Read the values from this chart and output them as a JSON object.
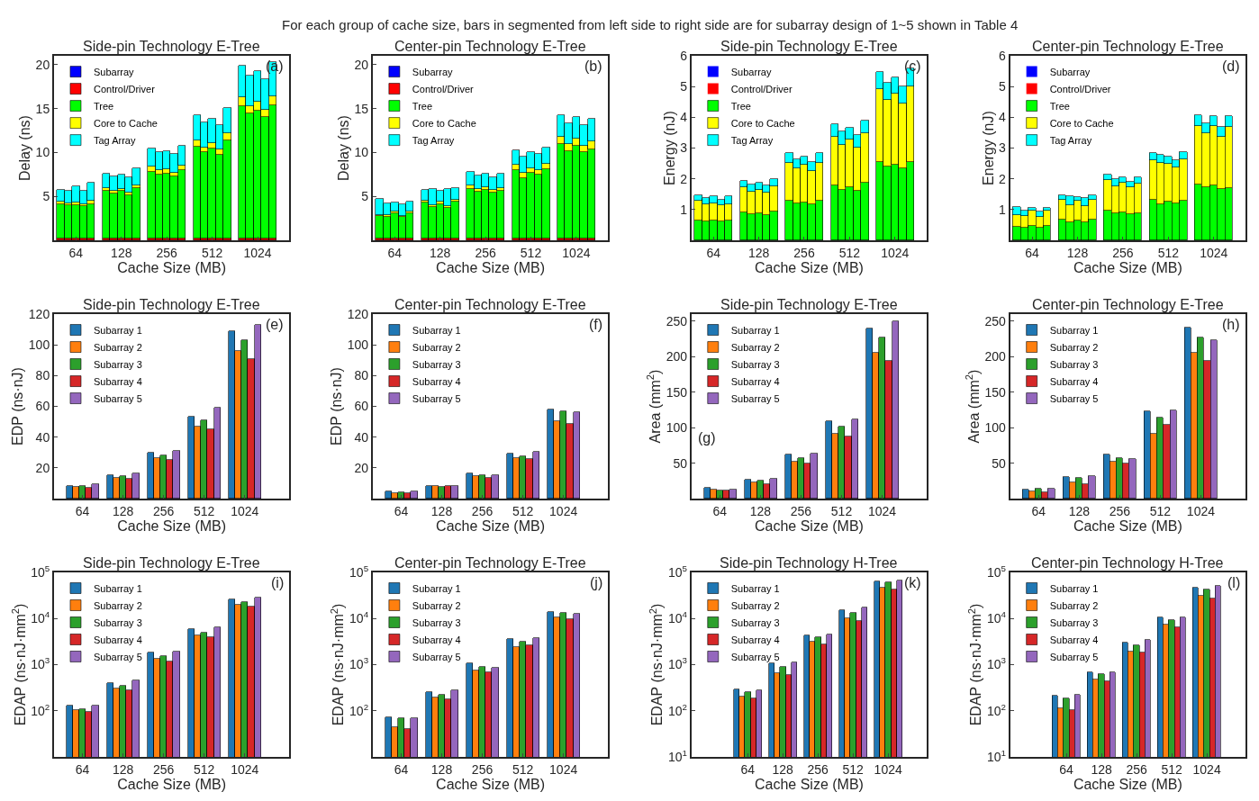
{
  "chart_data": [
    {
      "type": "bar",
      "title": "Side-pin Technology E-Tree",
      "xlabel": "Cache Size (MB)",
      "ylabel": "Delay (ns)",
      "stacked": true,
      "legend": "top left",
      "ylim": [
        0,
        21
      ],
      "yticks": [
        5,
        10,
        15,
        20
      ],
      "annotations": [
        "For each group of cache size, bars in segmented from left side to right side are for subarray design of 1~5 shown in Table 4",
        "(a)"
      ],
      "categories": [
        null,
        null,
        "64",
        null,
        null,
        null,
        null,
        null,
        "128",
        null,
        null,
        null,
        null,
        null,
        "256",
        null,
        null,
        null,
        null,
        null,
        "512",
        null,
        null,
        null,
        null,
        null,
        "1024",
        null,
        null
      ],
      "series": [
        {
          "name": "Subarray",
          "color": "#0000ff",
          "values": [
            0.05,
            0.05,
            0.05,
            0.05,
            0.05,
            null,
            0.05,
            0.05,
            0.05,
            0.05,
            0.05,
            null,
            0.05,
            0.05,
            0.05,
            0.05,
            0.05,
            null,
            0.05,
            0.05,
            0.05,
            0.05,
            0.05,
            null,
            0.05,
            0.05,
            0.05,
            0.05,
            0.05
          ]
        },
        {
          "name": "Control/Driver",
          "color": "#ff0000",
          "values": [
            0.2,
            0.2,
            0.2,
            0.2,
            0.2,
            null,
            0.2,
            0.2,
            0.2,
            0.2,
            0.2,
            null,
            0.2,
            0.2,
            0.2,
            0.2,
            0.2,
            null,
            0.2,
            0.2,
            0.2,
            0.2,
            0.2,
            null,
            0.2,
            0.2,
            0.2,
            0.2,
            0.2
          ]
        },
        {
          "name": "Tree",
          "color": "#00ff00",
          "values": [
            3.85,
            3.75,
            3.8,
            3.7,
            3.9,
            null,
            5.4,
            5.05,
            5.35,
            4.9,
            5.75,
            null,
            7.55,
            7.25,
            7.35,
            7.05,
            7.7,
            null,
            10.45,
            9.75,
            10.25,
            9.45,
            11.15,
            null,
            15.05,
            14.15,
            14.55,
            13.75,
            15.15
          ]
        },
        {
          "name": "Core to Cache",
          "color": "#ffff00",
          "values": [
            0.3,
            0.25,
            0.25,
            0.2,
            0.35,
            null,
            0.3,
            0.3,
            0.25,
            0.3,
            0.3,
            null,
            0.6,
            0.5,
            0.55,
            0.4,
            0.55,
            null,
            0.7,
            0.6,
            0.6,
            0.7,
            0.8,
            null,
            1.0,
            0.9,
            1.0,
            0.9,
            1.0
          ]
        },
        {
          "name": "Tag Array",
          "color": "#00ffff",
          "values": [
            1.35,
            1.4,
            1.9,
            1.45,
            2.05,
            null,
            1.65,
            1.7,
            1.65,
            1.75,
            1.9,
            null,
            2.1,
            2.0,
            2.05,
            2.1,
            2.3,
            null,
            2.8,
            2.8,
            2.7,
            2.7,
            2.9,
            null,
            3.6,
            3.4,
            3.5,
            3.4,
            3.9
          ]
        }
      ]
    },
    {
      "type": "bar",
      "title": "Center-pin Technology E-Tree",
      "xlabel": "Cache Size (MB)",
      "ylabel": "Delay (ns)",
      "stacked": true,
      "legend": "top left",
      "ylim": [
        0,
        21
      ],
      "yticks": [
        5,
        10,
        15,
        20
      ],
      "annotations": [
        "(b)"
      ],
      "categories": [
        null,
        null,
        "64",
        null,
        null,
        null,
        null,
        null,
        "128",
        null,
        null,
        null,
        null,
        null,
        "256",
        null,
        null,
        null,
        null,
        null,
        "512",
        null,
        null,
        null,
        null,
        null,
        "1024",
        null,
        null
      ],
      "series": [
        {
          "name": "Subarray",
          "color": "#0000ff",
          "values": [
            0.05,
            0.05,
            0.05,
            0.05,
            0.05,
            null,
            0.05,
            0.05,
            0.05,
            0.05,
            0.05,
            null,
            0.05,
            0.05,
            0.05,
            0.05,
            0.05,
            null,
            0.05,
            0.05,
            0.05,
            0.05,
            0.05,
            null,
            0.05,
            0.05,
            0.05,
            0.05,
            0.05
          ]
        },
        {
          "name": "Control/Driver",
          "color": "#ff0000",
          "values": [
            0.2,
            0.2,
            0.2,
            0.2,
            0.2,
            null,
            0.2,
            0.2,
            0.2,
            0.2,
            0.2,
            null,
            0.2,
            0.2,
            0.2,
            0.2,
            0.2,
            null,
            0.2,
            0.2,
            0.2,
            0.2,
            0.2,
            null,
            0.2,
            0.2,
            0.2,
            0.2,
            0.2
          ]
        },
        {
          "name": "Tree",
          "color": "#00ff00",
          "values": [
            2.5,
            2.45,
            2.85,
            2.4,
            2.8,
            null,
            4.05,
            3.55,
            3.9,
            3.5,
            4.15,
            null,
            5.65,
            5.25,
            5.45,
            5.15,
            5.35,
            null,
            7.75,
            6.85,
            7.45,
            7.25,
            7.85,
            null,
            10.75,
            9.95,
            10.55,
            9.75,
            10.15
          ]
        },
        {
          "name": "Core to Cache",
          "color": "#ffff00",
          "values": [
            0.15,
            0.15,
            0.15,
            0.15,
            0.2,
            null,
            0.25,
            0.25,
            0.3,
            0.2,
            0.25,
            null,
            0.4,
            0.35,
            0.35,
            0.35,
            0.35,
            null,
            0.6,
            0.6,
            0.55,
            0.5,
            0.6,
            null,
            0.8,
            0.8,
            0.8,
            0.8,
            0.9
          ]
        },
        {
          "name": "Tag Array",
          "color": "#00ffff",
          "values": [
            1.8,
            1.35,
            1.05,
            1.3,
            1.2,
            null,
            1.15,
            1.85,
            1.15,
            1.9,
            1.35,
            null,
            1.45,
            1.5,
            1.5,
            1.45,
            1.65,
            null,
            1.7,
            1.8,
            1.8,
            1.8,
            1.9,
            null,
            2.4,
            2.3,
            2.4,
            2.3,
            2.5
          ]
        }
      ]
    },
    {
      "type": "bar",
      "title": "Side-pin Technology E-Tree",
      "xlabel": "Cache Size (MB)",
      "ylabel": "Energy (nJ)",
      "stacked": true,
      "legend": "top left",
      "ylim": [
        0,
        6
      ],
      "yticks": [
        1,
        2,
        3,
        4,
        5,
        6
      ],
      "annotations": [
        "(c)"
      ],
      "categories": [
        null,
        null,
        "64",
        null,
        null,
        null,
        null,
        null,
        "128",
        null,
        null,
        null,
        null,
        null,
        "256",
        null,
        null,
        null,
        null,
        null,
        "512",
        null,
        null,
        null,
        null,
        null,
        "1024",
        null,
        null
      ],
      "series": [
        {
          "name": "Subarray",
          "color": "#0000ff",
          "values": [
            0,
            0,
            0,
            0,
            0,
            null,
            0,
            0,
            0,
            0,
            0,
            null,
            0,
            0,
            0,
            0,
            0,
            null,
            0,
            0,
            0,
            0,
            0,
            null,
            0,
            0,
            0,
            0,
            0
          ]
        },
        {
          "name": "Control/Driver",
          "color": "#ff0000",
          "values": [
            0,
            0,
            0,
            0,
            0,
            null,
            0,
            0,
            0,
            0,
            0,
            null,
            0,
            0,
            0,
            0,
            0,
            null,
            0,
            0,
            0,
            0,
            0,
            null,
            0,
            0,
            0,
            0,
            0
          ]
        },
        {
          "name": "Tree",
          "color": "#00ff00",
          "values": [
            0.66,
            0.63,
            0.64,
            0.61,
            0.66,
            null,
            0.91,
            0.85,
            0.88,
            0.83,
            0.95,
            null,
            1.28,
            1.21,
            1.23,
            1.18,
            1.28,
            null,
            1.78,
            1.65,
            1.73,
            1.6,
            1.88,
            null,
            2.55,
            2.4,
            2.45,
            2.33,
            2.54
          ]
        },
        {
          "name": "Core to Cache",
          "color": "#ffff00",
          "values": [
            0.62,
            0.53,
            0.56,
            0.54,
            0.52,
            null,
            0.82,
            0.73,
            0.77,
            0.72,
            0.81,
            null,
            1.23,
            1.12,
            1.23,
            1.08,
            1.25,
            null,
            1.58,
            1.45,
            1.55,
            1.43,
            1.6,
            null,
            2.38,
            2.18,
            2.33,
            2.13,
            2.46
          ]
        },
        {
          "name": "Tag Array",
          "color": "#00ffff",
          "values": [
            0.18,
            0.22,
            0.23,
            0.18,
            0.27,
            null,
            0.21,
            0.25,
            0.23,
            0.23,
            0.24,
            null,
            0.32,
            0.3,
            0.25,
            0.3,
            0.32,
            null,
            0.42,
            0.43,
            0.38,
            0.4,
            0.42,
            null,
            0.55,
            0.55,
            0.53,
            0.54,
            0.58
          ]
        }
      ]
    },
    {
      "type": "bar",
      "title": "Center-pin Technology E-Tree",
      "xlabel": "Cache Size (MB)",
      "ylabel": "Energy (nJ)",
      "stacked": true,
      "legend": "top left",
      "ylim": [
        0,
        6
      ],
      "yticks": [
        1,
        2,
        3,
        4,
        5,
        6
      ],
      "annotations": [
        "(d)"
      ],
      "categories": [
        null,
        null,
        "64",
        null,
        null,
        null,
        null,
        null,
        "128",
        null,
        null,
        null,
        null,
        null,
        "256",
        null,
        null,
        null,
        null,
        null,
        "512",
        null,
        null,
        null,
        null,
        null,
        "1024",
        null,
        null
      ],
      "series": [
        {
          "name": "Subarray",
          "color": "#0000ff",
          "values": [
            0,
            0,
            0,
            0,
            0,
            null,
            0,
            0,
            0,
            0,
            0,
            null,
            0,
            0,
            0,
            0,
            0,
            null,
            0,
            0,
            0,
            0,
            0,
            null,
            0,
            0,
            0,
            0,
            0
          ]
        },
        {
          "name": "Control/Driver",
          "color": "#ff0000",
          "values": [
            0,
            0,
            0,
            0,
            0,
            null,
            0,
            0,
            0,
            0,
            0,
            null,
            0,
            0,
            0,
            0,
            0,
            null,
            0,
            0,
            0,
            0,
            0,
            null,
            0,
            0,
            0,
            0,
            0
          ]
        },
        {
          "name": "Tree",
          "color": "#00ff00",
          "values": [
            0.43,
            0.41,
            0.48,
            0.4,
            0.46,
            null,
            0.68,
            0.6,
            0.66,
            0.58,
            0.68,
            null,
            0.96,
            0.88,
            0.91,
            0.86,
            0.88,
            null,
            1.31,
            1.16,
            1.26,
            1.21,
            1.3,
            null,
            1.83,
            1.73,
            1.78,
            1.66,
            1.71
          ]
        },
        {
          "name": "Core to Cache",
          "color": "#ffff00",
          "values": [
            0.4,
            0.37,
            0.48,
            0.36,
            0.5,
            null,
            0.65,
            0.55,
            0.64,
            0.55,
            0.65,
            null,
            0.99,
            0.88,
            0.97,
            0.87,
            0.98,
            null,
            1.29,
            1.37,
            1.22,
            1.17,
            1.33,
            null,
            1.9,
            1.75,
            1.95,
            1.72,
            1.97
          ]
        },
        {
          "name": "Tag Array",
          "color": "#00ffff",
          "values": [
            0.25,
            0.2,
            0.1,
            0.17,
            0.1,
            null,
            0.14,
            0.29,
            0.1,
            0.24,
            0.15,
            null,
            0.18,
            0.22,
            0.17,
            0.17,
            0.19,
            null,
            0.24,
            0.25,
            0.25,
            0.23,
            0.23,
            null,
            0.35,
            0.32,
            0.32,
            0.32,
            0.35
          ]
        }
      ]
    },
    {
      "type": "bar",
      "title": "Side-pin Technology E-Tree",
      "xlabel": "Cache Size (MB)",
      "ylabel": "EDP (ns·nJ)",
      "legend": "top left",
      "ylim": [
        0,
        120
      ],
      "yticks": [
        20,
        40,
        60,
        80,
        100,
        120
      ],
      "annotations": [
        "(e)"
      ],
      "categories": [
        "64",
        "128",
        "256",
        "512",
        "1024"
      ],
      "series": [
        {
          "name": "Subarray 1",
          "color": "#1f77b4",
          "values": [
            8.5,
            15,
            30,
            53.5,
            109
          ]
        },
        {
          "name": "Subarray 2",
          "color": "#ff7f0e",
          "values": [
            7.5,
            13.5,
            26.5,
            47,
            96
          ]
        },
        {
          "name": "Subarray 3",
          "color": "#2ca02c",
          "values": [
            8.5,
            14.5,
            28,
            51,
            103
          ]
        },
        {
          "name": "Subarray 4",
          "color": "#d62728",
          "values": [
            7,
            13,
            25.5,
            45,
            91
          ]
        },
        {
          "name": "Subarray 5",
          "color": "#9467bd",
          "values": [
            9.5,
            16.5,
            31,
            59,
            113
          ]
        }
      ]
    },
    {
      "type": "bar",
      "title": "Center-pin Technology E-Tree",
      "xlabel": "Cache Size (MB)",
      "ylabel": "EDP (ns·nJ)",
      "legend": "top left",
      "ylim": [
        0,
        120
      ],
      "yticks": [
        20,
        40,
        60,
        80,
        100,
        120
      ],
      "annotations": [
        "(f)"
      ],
      "categories": [
        "64",
        "128",
        "256",
        "512",
        "1024"
      ],
      "series": [
        {
          "name": "Subarray 1",
          "color": "#1f77b4",
          "values": [
            5,
            8,
            16.5,
            29.5,
            58
          ]
        },
        {
          "name": "Subarray 2",
          "color": "#ff7f0e",
          "values": [
            3.5,
            8.5,
            14.5,
            26.5,
            50.5
          ]
        },
        {
          "name": "Subarray 3",
          "color": "#2ca02c",
          "values": [
            4,
            7.5,
            15.5,
            27.5,
            57
          ]
        },
        {
          "name": "Subarray 4",
          "color": "#d62728",
          "values": [
            3.5,
            8,
            13.5,
            26,
            48.5
          ]
        },
        {
          "name": "Subarray 5",
          "color": "#9467bd",
          "values": [
            4.5,
            8.5,
            15.5,
            30.5,
            56
          ]
        }
      ]
    },
    {
      "type": "bar",
      "title": "Side-pin Technology E-Tree",
      "xlabel": "Cache Size (MB)",
      "ylabel": "Area (mm$^{2}$)",
      "legend": "top left",
      "ylim": [
        0,
        260
      ],
      "yticks": [
        50,
        100,
        150,
        200,
        250
      ],
      "annotations": [
        "(g)"
      ],
      "categories": [
        "64",
        "128",
        "256",
        "512",
        "1024"
      ],
      "series": [
        {
          "name": "Subarray 1",
          "color": "#1f77b4",
          "values": [
            15,
            27,
            62,
            109,
            240
          ]
        },
        {
          "name": "Subarray 2",
          "color": "#ff7f0e",
          "values": [
            13,
            23,
            52,
            91,
            205
          ]
        },
        {
          "name": "Subarray 3",
          "color": "#2ca02c",
          "values": [
            12,
            25,
            57,
            101,
            227
          ]
        },
        {
          "name": "Subarray 4",
          "color": "#d62728",
          "values": [
            12,
            21,
            49,
            88,
            194
          ]
        },
        {
          "name": "Subarray 5",
          "color": "#9467bd",
          "values": [
            12.5,
            27.5,
            63,
            112,
            250
          ]
        }
      ]
    },
    {
      "type": "bar",
      "title": "Center-pin Technology E-Tree",
      "xlabel": "Cache Size (MB)",
      "ylabel": "Area (mm$^{2}$)",
      "legend": "top left",
      "ylim": [
        0,
        260
      ],
      "yticks": [
        50,
        100,
        150,
        200,
        250
      ],
      "annotations": [
        "(h)"
      ],
      "categories": [
        "64",
        "128",
        "256",
        "512",
        "1024"
      ],
      "series": [
        {
          "name": "Subarray 1",
          "color": "#1f77b4",
          "values": [
            13,
            31,
            62,
            123,
            241
          ]
        },
        {
          "name": "Subarray 2",
          "color": "#ff7f0e",
          "values": [
            10,
            23,
            52,
            91,
            205
          ]
        },
        {
          "name": "Subarray 3",
          "color": "#2ca02c",
          "values": [
            14,
            29,
            57,
            114,
            227
          ]
        },
        {
          "name": "Subarray 4",
          "color": "#d62728",
          "values": [
            9,
            21,
            49,
            104,
            194
          ]
        },
        {
          "name": "Subarray 5",
          "color": "#9467bd",
          "values": [
            13.5,
            32,
            56,
            125,
            223
          ]
        }
      ]
    },
    {
      "type": "bar",
      "title": "Side-pin Technology E-Tree",
      "xlabel": "Cache Size (MB)",
      "ylabel": "EDAP (ns·nJ·mm$^{2}$)",
      "legend": "top left",
      "log": true,
      "ylim": [
        10,
        100000
      ],
      "yticks": [
        {
          "value": 100,
          "label": "10$^{2}$"
        },
        {
          "value": 1000,
          "label": "10$^{3}$"
        },
        {
          "value": 10000,
          "label": "10$^{4}$"
        },
        {
          "value": 100000,
          "label": "10$^{5}$"
        }
      ],
      "annotations": [
        "(i)"
      ],
      "categories": [
        "64",
        "128",
        "256",
        "512",
        "1024"
      ],
      "series": [
        {
          "name": "Subarray 1",
          "color": "#1f77b4",
          "values": [
            130,
            400,
            1800,
            5800,
            26000
          ]
        },
        {
          "name": "Subarray 2",
          "color": "#ff7f0e",
          "values": [
            105,
            305,
            1350,
            4300,
            20000
          ]
        },
        {
          "name": "Subarray 3",
          "color": "#2ca02c",
          "values": [
            108,
            350,
            1550,
            5000,
            23000
          ]
        },
        {
          "name": "Subarray 4",
          "color": "#d62728",
          "values": [
            95,
            280,
            1200,
            4000,
            18000
          ]
        },
        {
          "name": "Subarray 5",
          "color": "#9467bd",
          "values": [
            128,
            450,
            1900,
            6500,
            28000
          ]
        }
      ]
    },
    {
      "type": "bar",
      "title": "Center-pin Technology E-Tree",
      "xlabel": "Cache Size (MB)",
      "ylabel": "EDAP (ns·nJ·mm$^{2}$)",
      "legend": "top left",
      "log": true,
      "ylim": [
        10,
        100000
      ],
      "yticks": [
        {
          "value": 100,
          "label": "10$^{2}$"
        },
        {
          "value": 1000,
          "label": "10$^{3}$"
        },
        {
          "value": 10000,
          "label": "10$^{4}$"
        },
        {
          "value": 100000,
          "label": "10$^{5}$"
        }
      ],
      "annotations": [
        "(j)"
      ],
      "categories": [
        "64",
        "128",
        "256",
        "512",
        "1024"
      ],
      "series": [
        {
          "name": "Subarray 1",
          "color": "#1f77b4",
          "values": [
            72,
            260,
            1050,
            3600,
            14000
          ]
        },
        {
          "name": "Subarray 2",
          "color": "#ff7f0e",
          "values": [
            45,
            195,
            740,
            2400,
            10500
          ]
        },
        {
          "name": "Subarray 3",
          "color": "#2ca02c",
          "values": [
            68,
            225,
            900,
            3100,
            13000
          ]
        },
        {
          "name": "Subarray 4",
          "color": "#d62728",
          "values": [
            40,
            175,
            680,
            2600,
            9500
          ]
        },
        {
          "name": "Subarray 5",
          "color": "#9467bd",
          "values": [
            68,
            275,
            870,
            3800,
            12500
          ]
        }
      ]
    },
    {
      "type": "bar",
      "title": "Side-pin Technology H-Tree",
      "xlabel": "Cache Size (MB)",
      "ylabel": "EDAP (ns·nJ·mm$^{2}$)",
      "legend": "top left",
      "log": true,
      "ylim": [
        10,
        100000
      ],
      "yticks": [
        {
          "value": 10,
          "label": "10$^{1}$"
        },
        {
          "value": 100,
          "label": "10$^{2}$"
        },
        {
          "value": 1000,
          "label": "10$^{3}$"
        },
        {
          "value": 10000,
          "label": "10$^{4}$"
        },
        {
          "value": 100000,
          "label": "10$^{5}$"
        }
      ],
      "annotations": [
        "(k)"
      ],
      "categories": [
        "64",
        "128",
        "256",
        "512",
        "1024"
      ],
      "series": [
        {
          "name": "Subarray 1",
          "color": "#1f77b4",
          "values": [
            290,
            1050,
            4300,
            15000,
            65000
          ]
        },
        {
          "name": "Subarray 2",
          "color": "#ff7f0e",
          "values": [
            205,
            650,
            3100,
            10000,
            46000
          ]
        },
        {
          "name": "Subarray 3",
          "color": "#2ca02c",
          "values": [
            260,
            900,
            4000,
            13500,
            60000
          ]
        },
        {
          "name": "Subarray 4",
          "color": "#d62728",
          "values": [
            190,
            600,
            2800,
            9000,
            42000
          ]
        },
        {
          "name": "Subarray 5",
          "color": "#9467bd",
          "values": [
            280,
            1100,
            4500,
            17000,
            68000
          ]
        }
      ]
    },
    {
      "type": "bar",
      "title": "Center-pin Technology H-Tree",
      "xlabel": "Cache Size (MB)",
      "ylabel": "EDAP (ns·nJ·mm$^{2}$)",
      "legend": "top left",
      "log": true,
      "ylim": [
        10,
        100000
      ],
      "yticks": [
        {
          "value": 10,
          "label": "10$^{1}$"
        },
        {
          "value": 100,
          "label": "10$^{2}$"
        },
        {
          "value": 1000,
          "label": "10$^{3}$"
        },
        {
          "value": 10000,
          "label": "10$^{4}$"
        },
        {
          "value": 100000,
          "label": "10$^{5}$"
        }
      ],
      "annotations": [
        "(l)"
      ],
      "categories": [
        "64",
        "128",
        "256",
        "512",
        "1024"
      ],
      "series": [
        {
          "name": "Subarray 1",
          "color": "#1f77b4",
          "values": [
            210,
            700,
            3000,
            10500,
            47000
          ]
        },
        {
          "name": "Subarray 2",
          "color": "#ff7f0e",
          "values": [
            115,
            480,
            1950,
            7300,
            31000
          ]
        },
        {
          "name": "Subarray 3",
          "color": "#2ca02c",
          "values": [
            185,
            620,
            2600,
            9300,
            42000
          ]
        },
        {
          "name": "Subarray 4",
          "color": "#d62728",
          "values": [
            105,
            440,
            1850,
            6500,
            27000
          ]
        },
        {
          "name": "Subarray 5",
          "color": "#9467bd",
          "values": [
            225,
            680,
            3400,
            10500,
            52000
          ]
        }
      ]
    }
  ]
}
